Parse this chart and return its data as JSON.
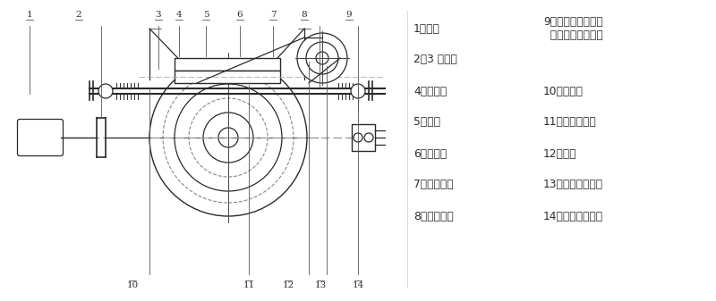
{
  "bg_color": "#ffffff",
  "line_color": "#2a2a2a",
  "fig_width": 8.0,
  "fig_height": 3.37,
  "legend_left": [
    "1、电机",
    "2、3 正齿轮",
    "4、蜗杆套",
    "5、蜗轮",
    "6、输出轴",
    "7、端面齿轮",
    "8、行程小齿"
  ],
  "legend_right_9": "9、行程控制机构和\n  可调式开度指示器",
  "legend_right": [
    "10、蜗杆轴",
    "11、蜗杆上环槽",
    "12、曲拐",
    "13、行程控制机构",
    "14、过力矩磹簧组"
  ]
}
